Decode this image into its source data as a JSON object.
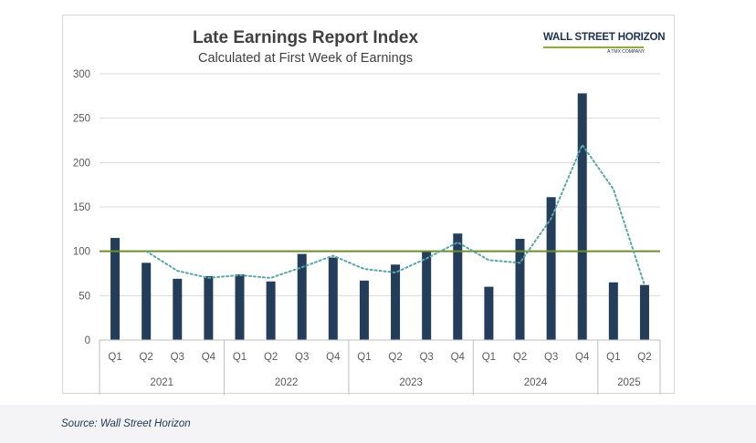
{
  "logo": {
    "main_text": "WALL STREET HORIZON",
    "sub_text": "A TMX COMPANY"
  },
  "source": "Source: Wall Street Horizon",
  "chart_data": {
    "type": "bar",
    "title": "Late Earnings Report Index",
    "subtitle": "Calculated at First Week of Earnings",
    "xlabel": "",
    "ylabel": "",
    "ylim": [
      0,
      300
    ],
    "yticks": [
      0,
      50,
      100,
      150,
      200,
      250,
      300
    ],
    "categories": [
      "Q1",
      "Q2",
      "Q3",
      "Q4",
      "Q1",
      "Q2",
      "Q3",
      "Q4",
      "Q1",
      "Q2",
      "Q3",
      "Q4",
      "Q1",
      "Q2",
      "Q3",
      "Q4",
      "Q1",
      "Q2"
    ],
    "groups": [
      {
        "label": "2021",
        "count": 4
      },
      {
        "label": "2022",
        "count": 4
      },
      {
        "label": "2023",
        "count": 4
      },
      {
        "label": "2024",
        "count": 4
      },
      {
        "label": "2025",
        "count": 2
      }
    ],
    "series": [
      {
        "name": "Late Earnings Report Index",
        "type": "bar",
        "color": "#243d5a",
        "values": [
          115,
          87,
          69,
          72,
          74,
          66,
          97,
          93,
          67,
          85,
          100,
          120,
          60,
          114,
          161,
          278,
          65,
          62
        ]
      },
      {
        "name": "Trend",
        "type": "dotted-line",
        "color": "#5aa5a8",
        "values": [
          null,
          100,
          78,
          70,
          73,
          70,
          82,
          95,
          80,
          76,
          92,
          110,
          90,
          87,
          137,
          220,
          170,
          62
        ]
      }
    ],
    "reference_line": {
      "value": 100,
      "color": "#6e8e2c"
    },
    "grid": true
  }
}
